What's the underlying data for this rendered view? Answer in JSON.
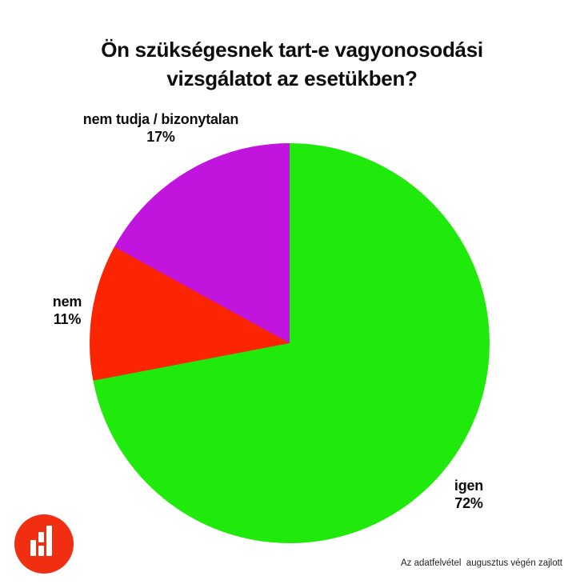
{
  "chart_data": {
    "type": "pie",
    "title": "Ön szükségesnek tart-e vagyonosodási vizsgálatot az esetükben?",
    "title_lines": [
      "Ön szükségesnek tart-e vagyonosodási",
      "vizsgálatot az esetükben?"
    ],
    "direction": "clockwise",
    "start_angle_deg": 0,
    "legend_position": "labels-around-pie",
    "slices": [
      {
        "label": "igen",
        "value": 72,
        "percent_label": "72%",
        "color": "#20ea0c",
        "label_position": "bottom-right"
      },
      {
        "label": "nem",
        "value": 11,
        "percent_label": "11%",
        "color": "#fb2502",
        "label_position": "left"
      },
      {
        "label": "nem tudja / bizonytalan",
        "value": 17,
        "percent_label": "17%",
        "color": "#c114dd",
        "label_position": "top-left"
      }
    ]
  },
  "footer": {
    "note": "Az adatfelvétel  augusztus végén zajlott"
  },
  "logo": {
    "icon": "bar-chart-icon",
    "background_color": "#f02f12",
    "bar_color": "#ffffff"
  }
}
